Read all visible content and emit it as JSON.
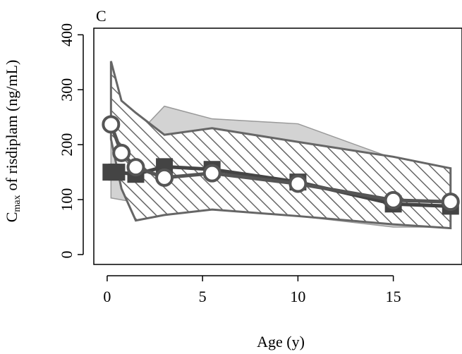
{
  "chart_data": {
    "type": "line",
    "panel_label": "C",
    "xlabel": "Age (y)",
    "ylabel": {
      "main": "C",
      "sub": "max",
      "rest": "of risdiplam (ng/mL)"
    },
    "xlim": [
      -0.7,
      18.6
    ],
    "ylim": [
      -18,
      412
    ],
    "xticks": [
      0,
      5,
      10,
      15
    ],
    "yticks": [
      0,
      100,
      200,
      300,
      400
    ],
    "bands": [
      {
        "style": "solid",
        "color": "#d3d3d3",
        "x": [
          0.2,
          1.5,
          3,
          5.5,
          10,
          15,
          18
        ],
        "upper": [
          225,
          215,
          270,
          247,
          238,
          175,
          150
        ],
        "lower": [
          103,
          95,
          105,
          100,
          70,
          50,
          50
        ]
      },
      {
        "style": "hatch",
        "color": "#666666",
        "x": [
          0.2,
          0.75,
          1.5,
          3,
          5.5,
          10,
          15,
          18
        ],
        "upper": [
          352,
          280,
          258,
          218,
          230,
          205,
          178,
          157
        ],
        "lower": [
          210,
          120,
          62,
          72,
          82,
          70,
          55,
          48
        ]
      }
    ],
    "series": [
      {
        "marker": "square",
        "color": "#444444",
        "x": [
          0.2,
          0.5,
          1.5,
          3,
          5.5,
          10,
          15,
          18
        ],
        "values": [
          150,
          150,
          146,
          160,
          155,
          132,
          92,
          88
        ]
      },
      {
        "marker": "circle",
        "color": "#555555",
        "x": [
          0.2,
          0.75,
          1.5,
          3,
          5.5,
          10,
          15,
          18
        ],
        "values": [
          237,
          185,
          159,
          140,
          148,
          129,
          99,
          96
        ]
      }
    ]
  }
}
